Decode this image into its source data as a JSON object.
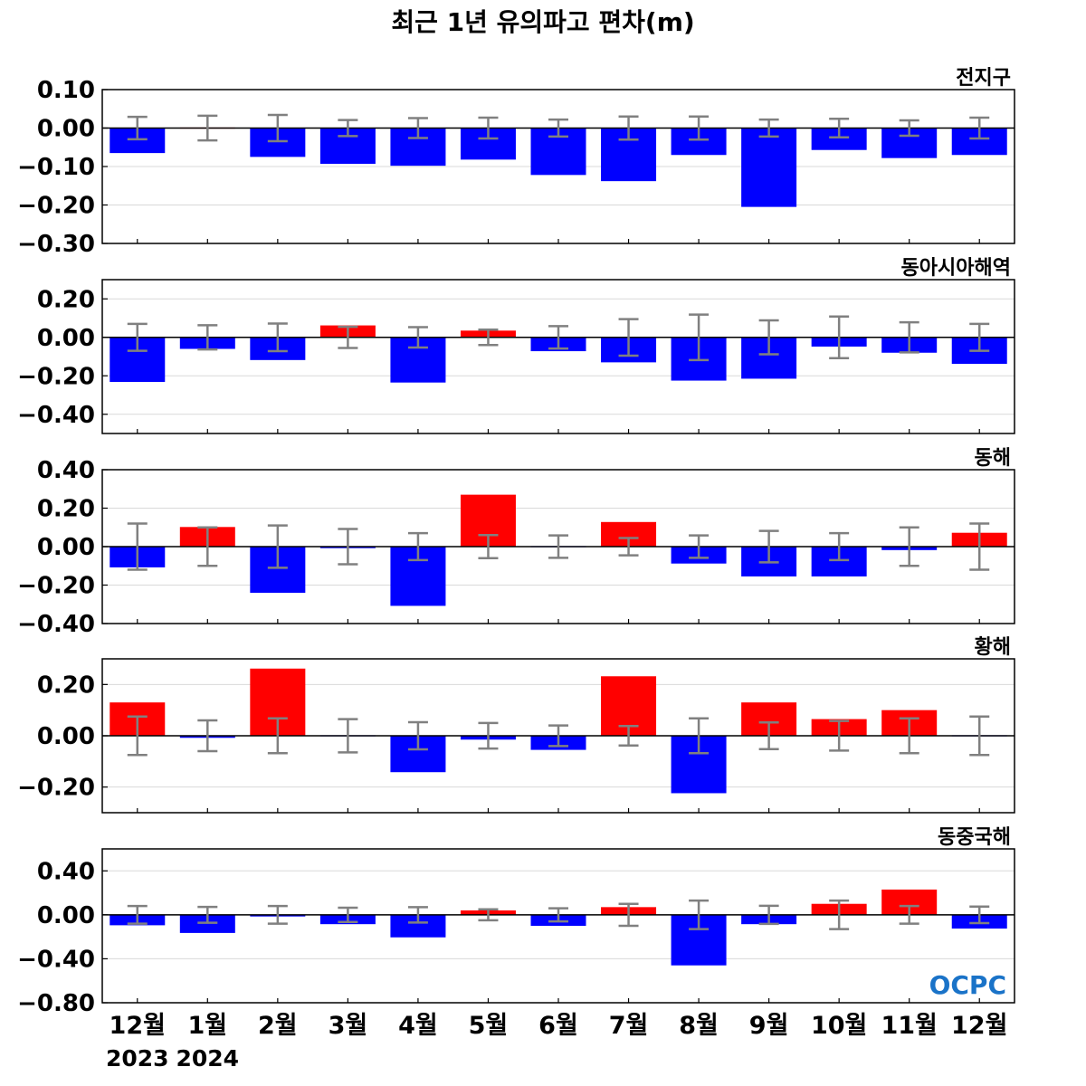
{
  "chart_data": {
    "type": "bar",
    "title": "최근 1년 유의파고 편차(m)",
    "categories": [
      "12월",
      "1월",
      "2월",
      "3월",
      "4월",
      "5월",
      "6월",
      "7월",
      "8월",
      "9월",
      "10월",
      "11월",
      "12월"
    ],
    "year_labels": [
      {
        "index": 0,
        "label": "2023"
      },
      {
        "index": 1,
        "label": "2024"
      }
    ],
    "colors": {
      "positive": "#ff0000",
      "negative": "#0000ff",
      "error_bar": "#808080",
      "grid": "#d9d9d9",
      "zero_line": "#000000"
    },
    "logo": "OCPC",
    "panels": [
      {
        "name": "전지구",
        "ylim": [
          -0.3,
          0.1
        ],
        "yticks": [
          -0.3,
          -0.2,
          -0.1,
          0.0,
          0.1
        ],
        "ytick_labels": [
          "−0.30",
          "−0.20",
          "−0.10",
          "0.00",
          "0.10"
        ],
        "values": [
          -0.065,
          0.002,
          -0.075,
          -0.093,
          -0.098,
          -0.082,
          -0.122,
          -0.138,
          -0.07,
          -0.205,
          -0.057,
          -0.078,
          -0.07
        ],
        "error": [
          0.029,
          0.032,
          0.034,
          0.021,
          0.026,
          0.027,
          0.022,
          0.03,
          0.03,
          0.022,
          0.024,
          0.02,
          0.027
        ]
      },
      {
        "name": "동아시아해역",
        "ylim": [
          -0.5,
          0.3
        ],
        "yticks": [
          -0.4,
          -0.2,
          0.0,
          0.2
        ],
        "ytick_labels": [
          "−0.40",
          "−0.20",
          "0.00",
          "0.20"
        ],
        "values": [
          -0.232,
          -0.06,
          -0.118,
          0.062,
          -0.235,
          0.035,
          -0.072,
          -0.13,
          -0.225,
          -0.215,
          -0.048,
          -0.08,
          -0.138
        ],
        "error": [
          0.07,
          0.063,
          0.072,
          0.055,
          0.053,
          0.04,
          0.058,
          0.095,
          0.118,
          0.088,
          0.108,
          0.078,
          0.07
        ]
      },
      {
        "name": "동해",
        "ylim": [
          -0.4,
          0.4
        ],
        "yticks": [
          -0.4,
          -0.2,
          0.0,
          0.2,
          0.4
        ],
        "ytick_labels": [
          "−0.40",
          "−0.20",
          "0.00",
          "0.20",
          "0.40"
        ],
        "values": [
          -0.108,
          0.102,
          -0.24,
          -0.008,
          -0.308,
          0.27,
          -0.003,
          0.128,
          -0.088,
          -0.155,
          -0.155,
          -0.018,
          0.072
        ],
        "error": [
          0.12,
          0.1,
          0.11,
          0.092,
          0.07,
          0.06,
          0.058,
          0.045,
          0.058,
          0.082,
          0.07,
          0.1,
          0.12
        ]
      },
      {
        "name": "황해",
        "ylim": [
          -0.3,
          0.3
        ],
        "yticks": [
          -0.2,
          0.0,
          0.2
        ],
        "ytick_labels": [
          "−0.20",
          "0.00",
          "0.20"
        ],
        "values": [
          0.13,
          -0.008,
          0.262,
          -0.004,
          -0.142,
          -0.015,
          -0.055,
          0.232,
          -0.224,
          0.13,
          0.065,
          0.1,
          -0.004
        ],
        "error": [
          0.075,
          0.06,
          0.068,
          0.065,
          0.053,
          0.05,
          0.04,
          0.038,
          0.068,
          0.052,
          0.058,
          0.068,
          0.075
        ]
      },
      {
        "name": "동중국해",
        "ylim": [
          -0.8,
          0.6
        ],
        "yticks": [
          -0.8,
          -0.4,
          0.0,
          0.4
        ],
        "ytick_labels": [
          "−0.80",
          "−0.40",
          "0.00",
          "0.40"
        ],
        "values": [
          -0.095,
          -0.165,
          -0.015,
          -0.085,
          -0.205,
          0.04,
          -0.1,
          0.07,
          -0.46,
          -0.085,
          0.1,
          0.23,
          -0.125
        ],
        "error": [
          0.08,
          0.072,
          0.08,
          0.065,
          0.07,
          0.05,
          0.06,
          0.1,
          0.13,
          0.082,
          0.13,
          0.08,
          0.075
        ]
      }
    ]
  }
}
